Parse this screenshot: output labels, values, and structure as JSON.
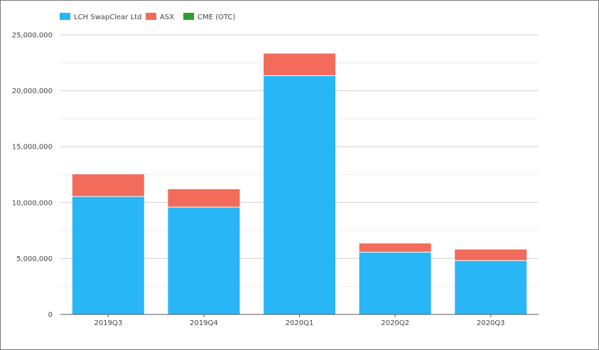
{
  "chart_data": {
    "type": "bar",
    "stacked": true,
    "categories": [
      "2019Q3",
      "2019Q4",
      "2020Q1",
      "2020Q2",
      "2020Q3"
    ],
    "series": [
      {
        "name": "LCH SwapClear Ltd",
        "color": "#29b6f6",
        "values": [
          10550000,
          9600000,
          21350000,
          5570000,
          4820000
        ]
      },
      {
        "name": "ASX",
        "color": "#f26b5b",
        "values": [
          1980000,
          1600000,
          1980000,
          780000,
          990000
        ]
      },
      {
        "name": "CME (OTC)",
        "color": "#2ca02c",
        "values": [
          0,
          0,
          0,
          0,
          0
        ]
      }
    ],
    "ylim": [
      0,
      25000000
    ],
    "yticks": [
      0,
      5000000,
      10000000,
      15000000,
      20000000,
      25000000
    ],
    "ytick_labels": [
      "0",
      "5,000,000",
      "10,000,000",
      "15,000,000",
      "20,000,000",
      "25,000,000"
    ],
    "grid": true,
    "legend_position": "top-left",
    "title": "",
    "xlabel": "",
    "ylabel": ""
  }
}
